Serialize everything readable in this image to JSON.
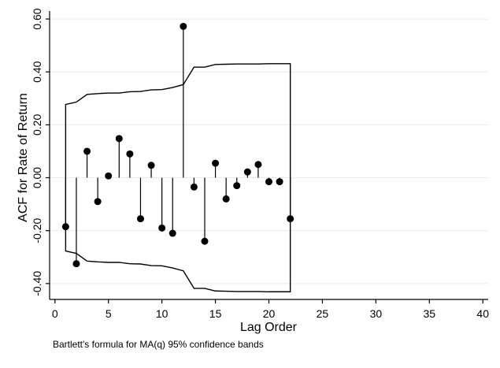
{
  "chart_data": {
    "type": "line",
    "title": "",
    "xlabel": "Lag Order",
    "ylabel": "ACF for Rate of Return",
    "note": "Bartlett's formula for MA(q) 95% confidence bands",
    "xlim": [
      -0.5,
      40.5
    ],
    "ylim": [
      -0.46,
      0.63
    ],
    "x_ticks": [
      0,
      5,
      10,
      15,
      20,
      25,
      30,
      35,
      40
    ],
    "x_tick_labels": [
      "0",
      "5",
      "10",
      "15",
      "20",
      "25",
      "30",
      "35",
      "40"
    ],
    "y_ticks": [
      -0.4,
      -0.2,
      0.0,
      0.2,
      0.4,
      0.6
    ],
    "y_tick_labels": [
      "-0.40",
      "-0.20",
      "0.00",
      "0.20",
      "0.40",
      "0.60"
    ],
    "grid": "horizontal",
    "lags": [
      1,
      2,
      3,
      4,
      5,
      6,
      7,
      8,
      9,
      10,
      11,
      12,
      13,
      14,
      15,
      16,
      17,
      18,
      19,
      20,
      21,
      22
    ],
    "acf": [
      -0.185,
      -0.325,
      0.1,
      -0.09,
      0.007,
      0.148,
      0.09,
      -0.155,
      0.047,
      -0.19,
      -0.21,
      0.572,
      -0.035,
      -0.24,
      0.055,
      -0.08,
      -0.03,
      0.022,
      0.05,
      -0.015,
      -0.015,
      -0.155
    ],
    "band": [
      0.277,
      0.286,
      0.315,
      0.318,
      0.32,
      0.32,
      0.325,
      0.326,
      0.332,
      0.333,
      0.341,
      0.352,
      0.418,
      0.418,
      0.428,
      0.429,
      0.43,
      0.43,
      0.43,
      0.431,
      0.431,
      0.431
    ],
    "colors": {
      "markers": "#000000",
      "band_line": "#000000",
      "grid": "#eaeaea",
      "background": "#ffffff"
    }
  }
}
